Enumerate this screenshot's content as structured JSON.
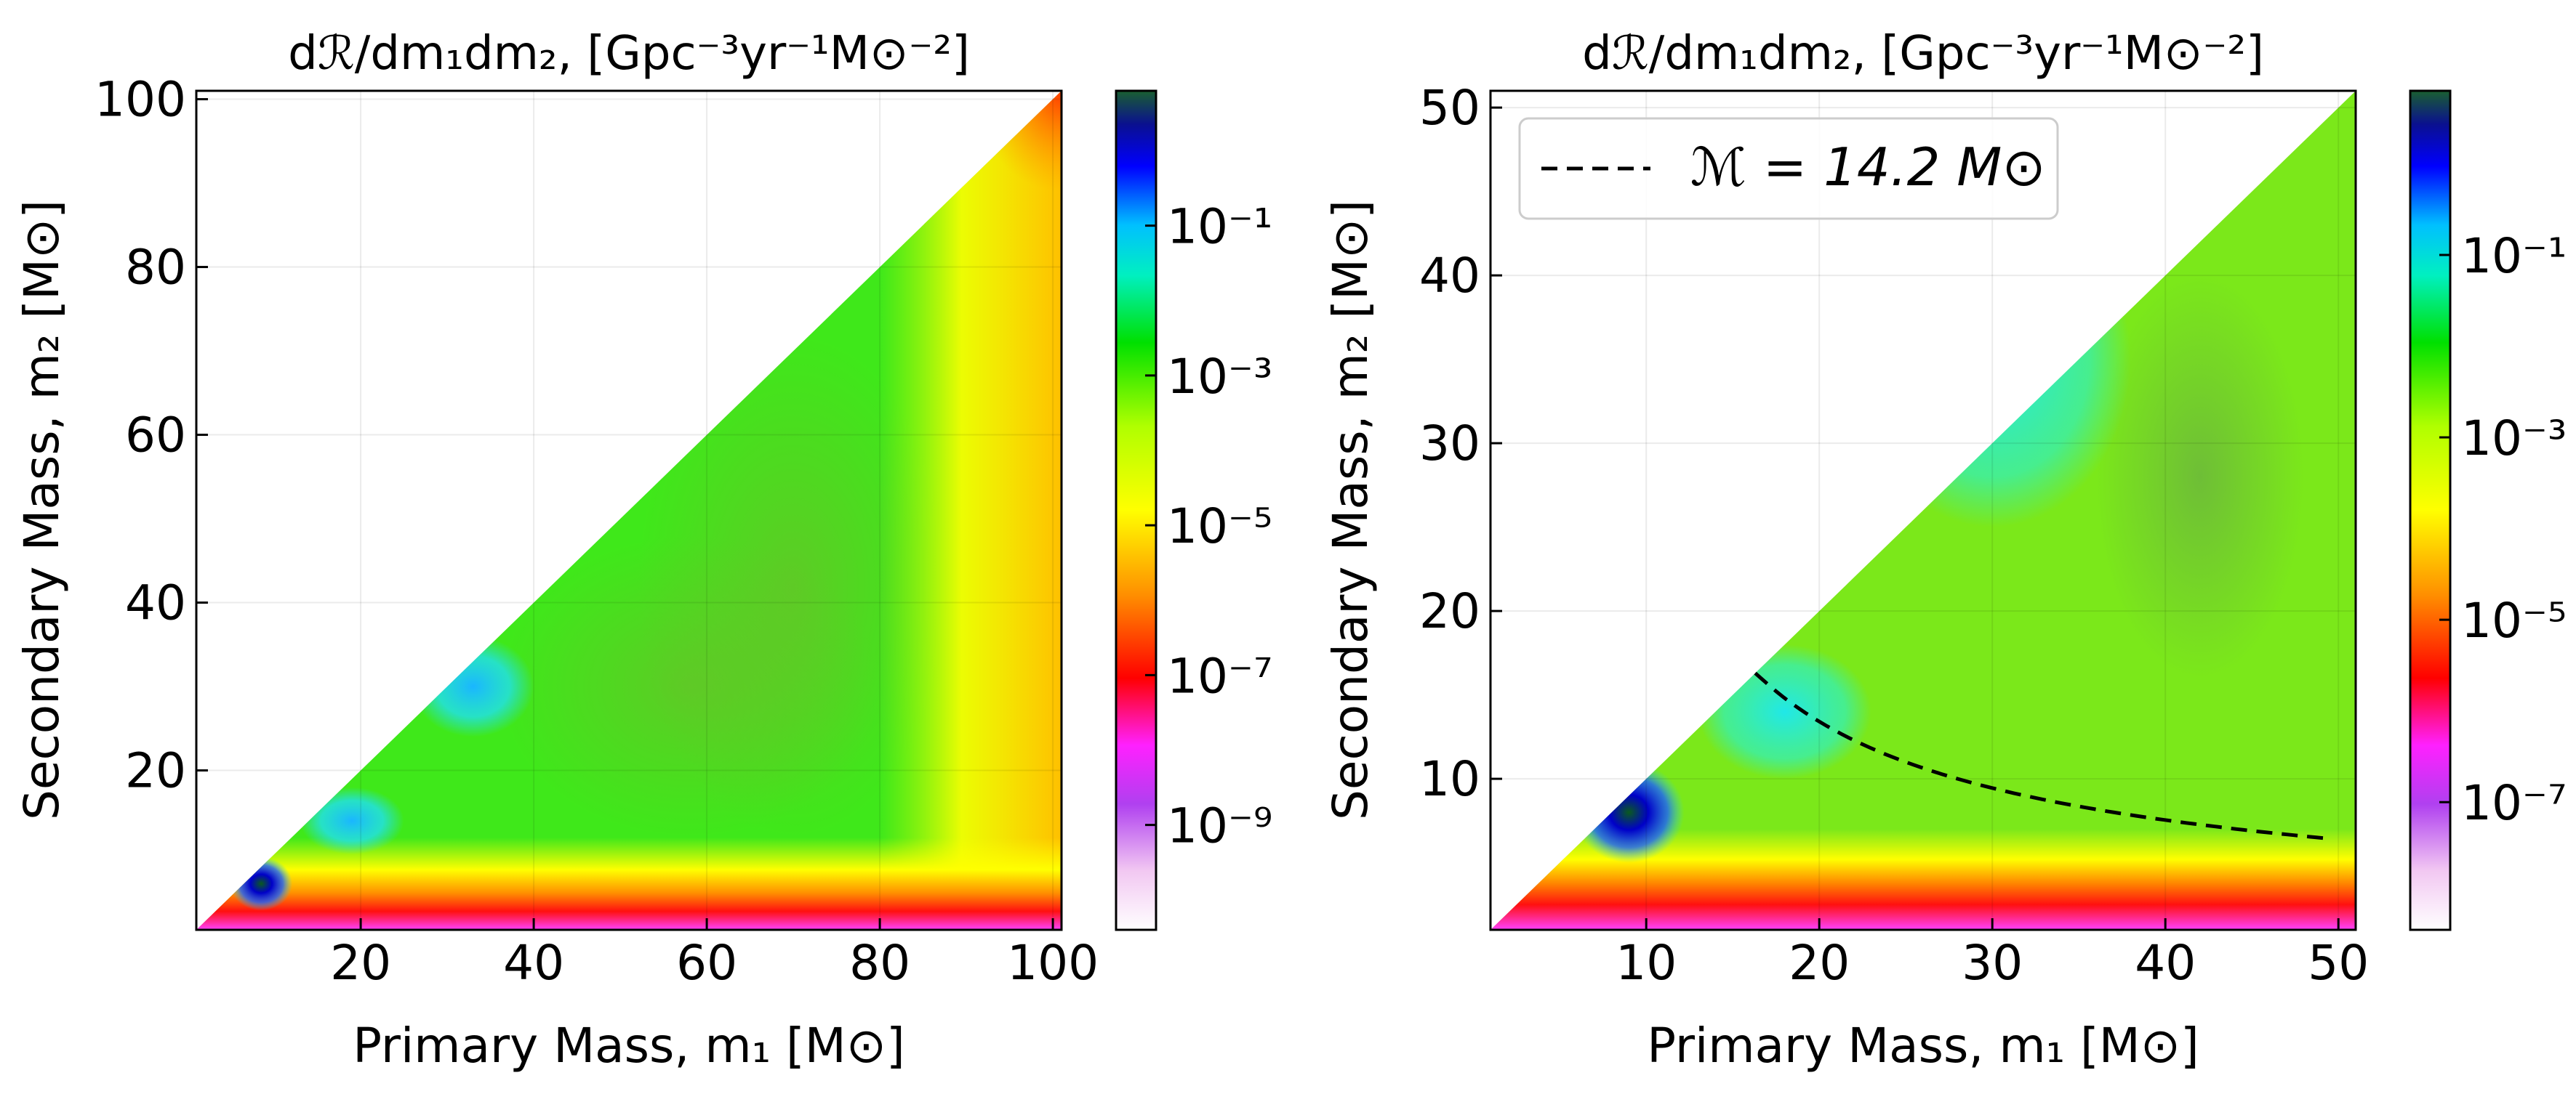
{
  "chart_data": [
    {
      "type": "heatmap",
      "title": "dℛ/dm₁dm₂, [Gpc⁻³yr⁻¹M⊙⁻²]",
      "xlabel": "Primary Mass, m₁ [M⊙]",
      "ylabel": "Secondary Mass, m₂ [M⊙]",
      "xlim": [
        1,
        101
      ],
      "ylim": [
        1,
        101
      ],
      "xticks": [
        20,
        40,
        60,
        80,
        100
      ],
      "xtick_labels": [
        "20",
        "40",
        "60",
        "80",
        "100"
      ],
      "yticks": [
        20,
        40,
        60,
        80,
        100
      ],
      "ytick_labels": [
        "20",
        "40",
        "60",
        "80",
        "100"
      ],
      "grid": true,
      "colorbar": {
        "scale": "log",
        "range_exp": [
          -10.4,
          0.8
        ],
        "ticks_exp": [
          -9,
          -7,
          -5,
          -3,
          -1
        ],
        "tick_labels": [
          "10⁻⁹",
          "10⁻⁷",
          "10⁻⁵",
          "10⁻³",
          "10⁻¹"
        ]
      }
    },
    {
      "type": "heatmap",
      "title": "dℛ/dm₁dm₂, [Gpc⁻³yr⁻¹M⊙⁻²]",
      "xlabel": "Primary Mass, m₁ [M⊙]",
      "ylabel": "Secondary Mass, m₂ [M⊙]",
      "xlim": [
        1,
        51
      ],
      "ylim": [
        1,
        51
      ],
      "xticks": [
        10,
        20,
        30,
        40,
        50
      ],
      "xtick_labels": [
        "10",
        "20",
        "30",
        "40",
        "50"
      ],
      "yticks": [
        10,
        20,
        30,
        40,
        50
      ],
      "ytick_labels": [
        "10",
        "20",
        "30",
        "40",
        "50"
      ],
      "grid": true,
      "legend": {
        "placement": "top-left",
        "entries": [
          "ℳ = 14.2 M⊙"
        ]
      },
      "chirp_mass_curve": {
        "mc": 14.2,
        "m1_range": [
          16.3,
          49.5
        ],
        "style": "dashed"
      },
      "colorbar": {
        "scale": "log",
        "range_exp": [
          -8.4,
          0.8
        ],
        "ticks_exp": [
          -7,
          -5,
          -3,
          -1
        ],
        "tick_labels": [
          "10⁻⁷",
          "10⁻⁵",
          "10⁻³",
          "10⁻¹"
        ]
      }
    }
  ]
}
